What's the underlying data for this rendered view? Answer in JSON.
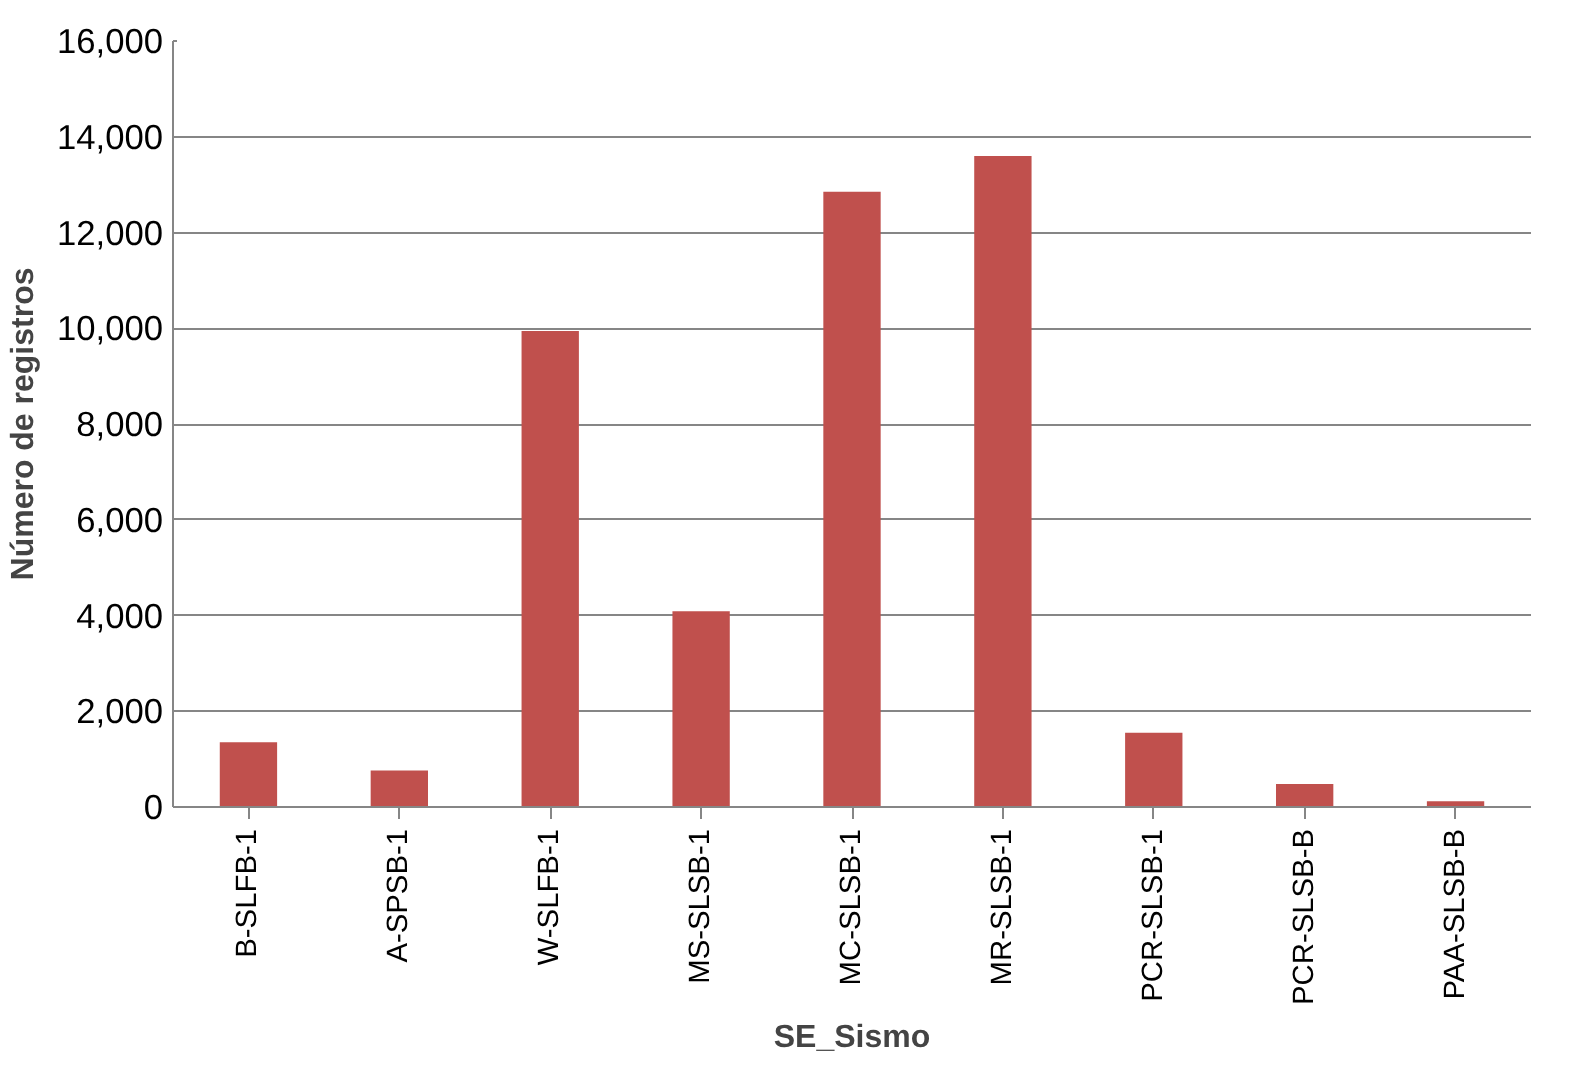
{
  "chart_data": {
    "type": "bar",
    "xlabel": "SE_Sismo",
    "ylabel": "Número de registros",
    "categories": [
      "B-SLFB-1",
      "A-SPSB-1",
      "W-SLFB-1",
      "MS-SLSB-1",
      "MC-SLSB-1",
      "MR-SLSB-1",
      "PCR-SLSB-1",
      "PCR-SLSB-B",
      "PAA-SLSB-B"
    ],
    "values": [
      1350,
      760,
      9940,
      4090,
      12850,
      13600,
      1550,
      480,
      120
    ],
    "color": "#c0504d",
    "ylim": [
      0,
      16000
    ],
    "yticks": [
      0,
      {
        "value": 2000,
        "label": "2,000"
      },
      {
        "value": 4000,
        "label": "4,000"
      },
      {
        "value": 6000,
        "label": "6,000"
      },
      {
        "value": 8000,
        "label": "8,000"
      },
      {
        "value": 10000,
        "label": "10,000"
      },
      {
        "value": 12000,
        "label": "12,000"
      },
      {
        "value": 14000,
        "label": "14,000"
      },
      {
        "value": 16000,
        "label": "16,000"
      }
    ],
    "grid": "y"
  }
}
